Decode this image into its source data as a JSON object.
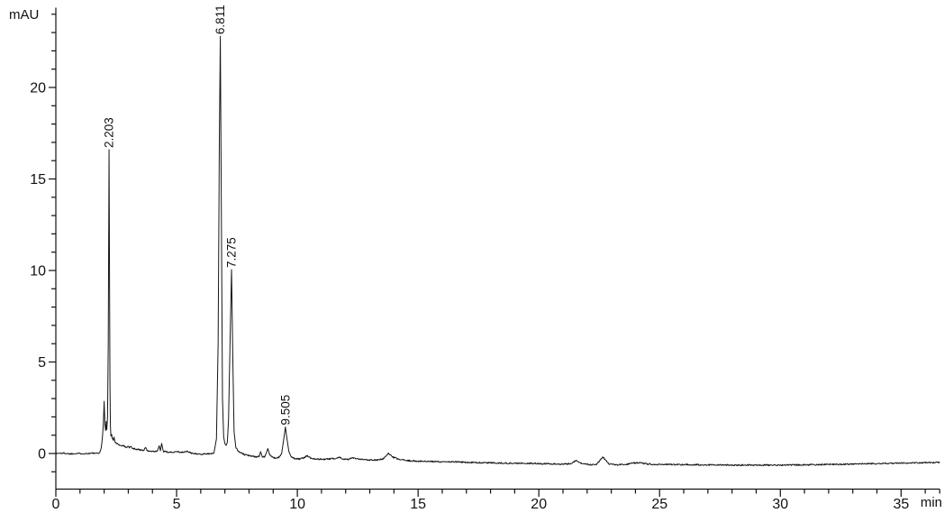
{
  "page": {
    "background": "#ffffff"
  },
  "chart_data": {
    "type": "line",
    "title": "",
    "ylabel": "mAU",
    "xlabel": "min",
    "x_range": [
      0,
      36.6
    ],
    "y_range": [
      -1.92,
      24.35
    ],
    "x_major_ticks": [
      0,
      5,
      10,
      15,
      20,
      25,
      30,
      35
    ],
    "x_minor_tick_step": 1,
    "y_major_ticks": [
      0,
      5,
      10,
      15,
      20
    ],
    "y_minor_tick_step": 1,
    "grid": false,
    "legend": null,
    "axis_color": "#111111",
    "trace_color": "#151515",
    "label_color": "#111111",
    "noise_amplitude": 0.038,
    "peaks": [
      {
        "label": "2.203",
        "rt": 2.203,
        "apex_mAU": 16.6
      },
      {
        "label": "6.811",
        "rt": 6.811,
        "apex_mAU": 22.8
      },
      {
        "label": "7.275",
        "rt": 7.275,
        "apex_mAU": 10.05
      },
      {
        "label": "9.505",
        "rt": 9.505,
        "apex_mAU": 1.45
      }
    ],
    "trace_points": [
      [
        0.0,
        0.0
      ],
      [
        0.3,
        0.02
      ],
      [
        0.6,
        -0.02
      ],
      [
        0.9,
        0.01
      ],
      [
        1.2,
        -0.01
      ],
      [
        1.5,
        0.02
      ],
      [
        1.7,
        0.0
      ],
      [
        1.82,
        0.05
      ],
      [
        1.88,
        0.3
      ],
      [
        1.93,
        0.9
      ],
      [
        1.97,
        1.7
      ],
      [
        2.0,
        2.85
      ],
      [
        2.03,
        1.6
      ],
      [
        2.06,
        1.25
      ],
      [
        2.09,
        1.75
      ],
      [
        2.11,
        1.3
      ],
      [
        2.14,
        2.0
      ],
      [
        2.17,
        6.0
      ],
      [
        2.203,
        16.6
      ],
      [
        2.24,
        4.0
      ],
      [
        2.26,
        1.5
      ],
      [
        2.28,
        0.95
      ],
      [
        2.31,
        1.05
      ],
      [
        2.34,
        0.8
      ],
      [
        2.38,
        0.75
      ],
      [
        2.41,
        0.9
      ],
      [
        2.44,
        0.65
      ],
      [
        2.5,
        0.55
      ],
      [
        2.6,
        0.5
      ],
      [
        2.7,
        0.42
      ],
      [
        2.8,
        0.45
      ],
      [
        2.9,
        0.33
      ],
      [
        3.0,
        0.4
      ],
      [
        3.05,
        0.3
      ],
      [
        3.1,
        0.42
      ],
      [
        3.15,
        0.28
      ],
      [
        3.3,
        0.25
      ],
      [
        3.5,
        0.2
      ],
      [
        3.65,
        0.18
      ],
      [
        3.72,
        0.35
      ],
      [
        3.78,
        0.15
      ],
      [
        3.9,
        0.12
      ],
      [
        4.05,
        0.1
      ],
      [
        4.2,
        0.12
      ],
      [
        4.28,
        0.42
      ],
      [
        4.33,
        0.15
      ],
      [
        4.38,
        0.55
      ],
      [
        4.45,
        0.12
      ],
      [
        4.6,
        0.08
      ],
      [
        4.8,
        0.06
      ],
      [
        5.0,
        0.12
      ],
      [
        5.2,
        0.05
      ],
      [
        5.45,
        0.12
      ],
      [
        5.6,
        0.02
      ],
      [
        5.8,
        0.0
      ],
      [
        6.0,
        -0.06
      ],
      [
        6.2,
        0.0
      ],
      [
        6.4,
        -0.03
      ],
      [
        6.55,
        0.05
      ],
      [
        6.65,
        0.8
      ],
      [
        6.72,
        6.0
      ],
      [
        6.77,
        17.0
      ],
      [
        6.811,
        22.8
      ],
      [
        6.85,
        14.0
      ],
      [
        6.9,
        3.0
      ],
      [
        6.95,
        0.9
      ],
      [
        7.0,
        0.55
      ],
      [
        7.05,
        0.45
      ],
      [
        7.1,
        0.6
      ],
      [
        7.15,
        1.8
      ],
      [
        7.22,
        6.5
      ],
      [
        7.275,
        10.05
      ],
      [
        7.33,
        5.0
      ],
      [
        7.38,
        1.2
      ],
      [
        7.45,
        0.35
      ],
      [
        7.55,
        0.12
      ],
      [
        7.7,
        0.0
      ],
      [
        7.9,
        -0.1
      ],
      [
        8.1,
        -0.12
      ],
      [
        8.3,
        -0.18
      ],
      [
        8.42,
        -0.15
      ],
      [
        8.48,
        0.1
      ],
      [
        8.55,
        -0.2
      ],
      [
        8.65,
        -0.18
      ],
      [
        8.72,
        0.05
      ],
      [
        8.78,
        0.27
      ],
      [
        8.85,
        -0.05
      ],
      [
        8.95,
        -0.2
      ],
      [
        9.1,
        -0.25
      ],
      [
        9.25,
        -0.2
      ],
      [
        9.35,
        0.0
      ],
      [
        9.45,
        0.9
      ],
      [
        9.505,
        1.45
      ],
      [
        9.56,
        0.9
      ],
      [
        9.65,
        0.1
      ],
      [
        9.75,
        -0.2
      ],
      [
        9.9,
        -0.28
      ],
      [
        10.1,
        -0.3
      ],
      [
        10.3,
        -0.22
      ],
      [
        10.4,
        -0.12
      ],
      [
        10.55,
        -0.25
      ],
      [
        10.8,
        -0.3
      ],
      [
        11.0,
        -0.32
      ],
      [
        11.3,
        -0.3
      ],
      [
        11.6,
        -0.26
      ],
      [
        11.75,
        -0.2
      ],
      [
        11.9,
        -0.3
      ],
      [
        12.1,
        -0.32
      ],
      [
        12.3,
        -0.24
      ],
      [
        12.45,
        -0.3
      ],
      [
        12.7,
        -0.33
      ],
      [
        13.0,
        -0.35
      ],
      [
        13.3,
        -0.35
      ],
      [
        13.55,
        -0.3
      ],
      [
        13.78,
        0.0
      ],
      [
        13.95,
        -0.2
      ],
      [
        14.2,
        -0.32
      ],
      [
        14.5,
        -0.38
      ],
      [
        15.0,
        -0.42
      ],
      [
        15.5,
        -0.44
      ],
      [
        16.0,
        -0.45
      ],
      [
        16.5,
        -0.46
      ],
      [
        17.0,
        -0.48
      ],
      [
        17.5,
        -0.5
      ],
      [
        18.0,
        -0.51
      ],
      [
        18.5,
        -0.52
      ],
      [
        19.0,
        -0.53
      ],
      [
        19.5,
        -0.54
      ],
      [
        20.0,
        -0.55
      ],
      [
        20.5,
        -0.57
      ],
      [
        21.0,
        -0.58
      ],
      [
        21.3,
        -0.56
      ],
      [
        21.55,
        -0.38
      ],
      [
        21.8,
        -0.57
      ],
      [
        22.1,
        -0.62
      ],
      [
        22.4,
        -0.58
      ],
      [
        22.65,
        -0.18
      ],
      [
        22.9,
        -0.58
      ],
      [
        23.2,
        -0.62
      ],
      [
        23.6,
        -0.6
      ],
      [
        23.9,
        -0.52
      ],
      [
        24.2,
        -0.5
      ],
      [
        24.5,
        -0.57
      ],
      [
        25.0,
        -0.6
      ],
      [
        25.5,
        -0.6
      ],
      [
        26.0,
        -0.61
      ],
      [
        26.5,
        -0.61
      ],
      [
        27.0,
        -0.62
      ],
      [
        27.5,
        -0.62
      ],
      [
        28.0,
        -0.63
      ],
      [
        28.5,
        -0.63
      ],
      [
        29.0,
        -0.63
      ],
      [
        29.5,
        -0.63
      ],
      [
        30.0,
        -0.63
      ],
      [
        30.5,
        -0.62
      ],
      [
        31.0,
        -0.62
      ],
      [
        31.5,
        -0.61
      ],
      [
        32.0,
        -0.6
      ],
      [
        32.5,
        -0.59
      ],
      [
        33.0,
        -0.58
      ],
      [
        33.5,
        -0.56
      ],
      [
        34.0,
        -0.55
      ],
      [
        34.5,
        -0.53
      ],
      [
        35.0,
        -0.52
      ],
      [
        35.5,
        -0.51
      ],
      [
        36.0,
        -0.5
      ],
      [
        36.6,
        -0.48
      ]
    ]
  }
}
